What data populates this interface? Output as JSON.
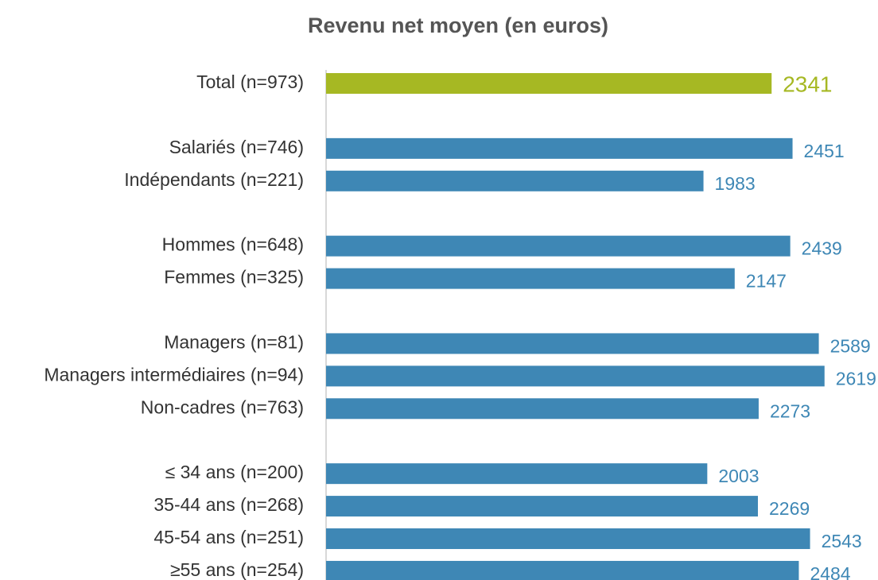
{
  "chart_data": {
    "type": "barh",
    "title": "Revenu net moyen (en euros)",
    "categories": [
      "Total (n=973)",
      null,
      "Salariés (n=746)",
      "Indépendants (n=221)",
      null,
      "Hommes (n=648)",
      "Femmes (n=325)",
      null,
      "Managers (n=81)",
      "Managers intermédiaires (n=94)",
      "Non-cadres (n=763)",
      null,
      "≤ 34 ans (n=200)",
      "35-44 ans (n=268)",
      "45-54 ans (n=251)",
      "≥55 ans (n=254)"
    ],
    "values": [
      2341,
      null,
      2451,
      1983,
      null,
      2439,
      2147,
      null,
      2589,
      2619,
      2273,
      null,
      2003,
      2269,
      2543,
      2484
    ],
    "colors": [
      "#a6b823",
      null,
      "#3e87b5",
      "#3e87b5",
      null,
      "#3e87b5",
      "#3e87b5",
      null,
      "#3e87b5",
      "#3e87b5",
      "#3e87b5",
      null,
      "#3e87b5",
      "#3e87b5",
      "#3e87b5",
      "#3e87b5"
    ],
    "xlim": [
      0,
      2900
    ]
  }
}
